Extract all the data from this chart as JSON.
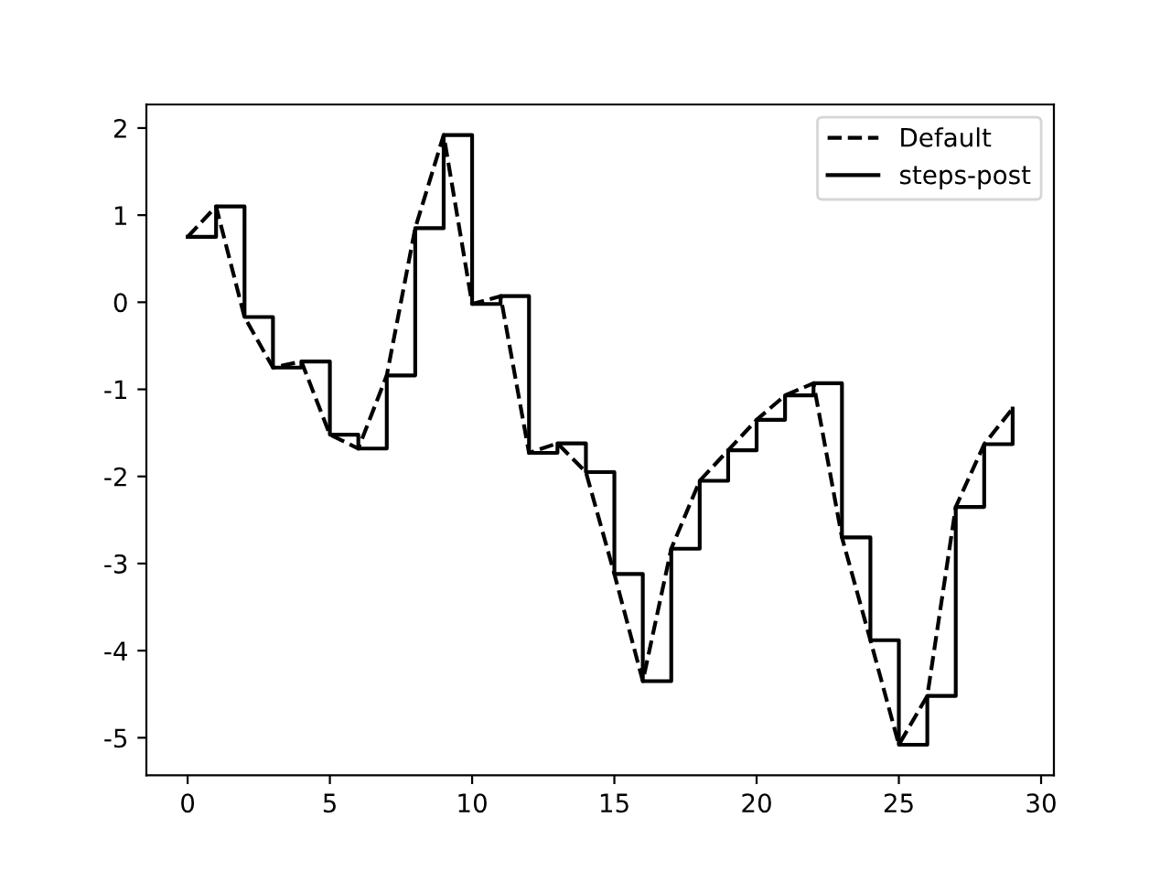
{
  "chart_data": {
    "type": "line",
    "x": [
      0,
      1,
      2,
      3,
      4,
      5,
      6,
      7,
      8,
      9,
      10,
      11,
      12,
      13,
      14,
      15,
      16,
      17,
      18,
      19,
      20,
      21,
      22,
      23,
      24,
      25,
      26,
      27,
      28,
      29
    ],
    "series": [
      {
        "name": "Default",
        "color": "#000000",
        "line_style": "dashed",
        "values": [
          0.75,
          1.1,
          -0.17,
          -0.75,
          -0.68,
          -1.52,
          -1.68,
          -0.84,
          0.85,
          1.92,
          -0.02,
          0.07,
          -1.73,
          -1.62,
          -1.95,
          -3.12,
          -4.35,
          -2.83,
          -2.05,
          -1.7,
          -1.35,
          -1.07,
          -0.93,
          -2.7,
          -3.88,
          -5.08,
          -4.52,
          -2.35,
          -1.63,
          -1.22
        ]
      },
      {
        "name": "steps-post",
        "type": "step",
        "color": "#000000",
        "line_style": "solid",
        "values": [
          0.75,
          1.1,
          -0.17,
          -0.75,
          -0.68,
          -1.52,
          -1.68,
          -0.84,
          0.85,
          1.92,
          -0.02,
          0.07,
          -1.73,
          -1.62,
          -1.95,
          -3.12,
          -4.35,
          -2.83,
          -2.05,
          -1.7,
          -1.35,
          -1.07,
          -0.93,
          -2.7,
          -3.88,
          -5.08,
          -4.52,
          -2.35,
          -1.63,
          -1.22
        ]
      }
    ],
    "xlim": [
      -1.45,
      30.45
    ],
    "ylim": [
      -5.43,
      2.27
    ],
    "xticks": [
      0,
      5,
      10,
      15,
      20,
      25,
      30
    ],
    "yticks": [
      -5,
      -4,
      -3,
      -2,
      -1,
      0,
      1,
      2
    ],
    "grid": false,
    "legend": "top right"
  }
}
